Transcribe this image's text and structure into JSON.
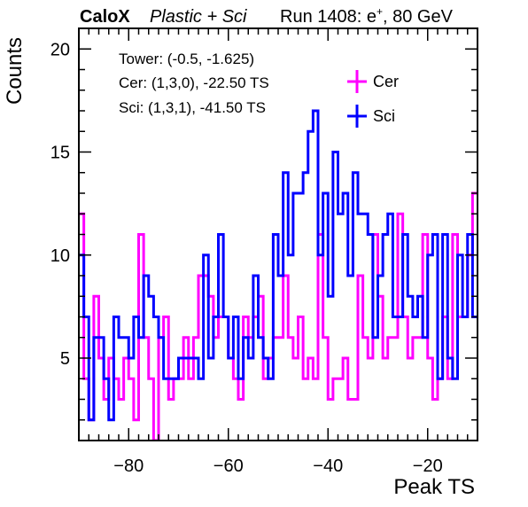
{
  "chart_data": {
    "type": "histogram-step",
    "header": {
      "brand": "CaloX",
      "subtitle": "Plastic + Sci",
      "run_prefix": "Run 1408: e",
      "run_sup": "+",
      "run_suffix": ", 80 GeV"
    },
    "xlabel": "Peak TS",
    "ylabel": "Counts",
    "xlim": [
      -90,
      -10
    ],
    "ylim": [
      1,
      21
    ],
    "xticks": [
      -80,
      -60,
      -40,
      -20
    ],
    "yticks": [
      5,
      10,
      15,
      20
    ],
    "bin_width": 1,
    "info": [
      "Tower: (-0.5, -1.625)",
      "Cer: (1,3,0), -22.50 TS",
      "Sci: (1,3,1), -41.50 TS"
    ],
    "legend_position": "top-right",
    "series": [
      {
        "name": "Cer",
        "color": "#ff00ff",
        "values": [
          12,
          4,
          2,
          8,
          5,
          3,
          5,
          4,
          3,
          5,
          4,
          2,
          11,
          6,
          4,
          1,
          6,
          7,
          3,
          4,
          4,
          6,
          4,
          6,
          9,
          9,
          8,
          6,
          7,
          7,
          5,
          4,
          3,
          7,
          6,
          7,
          8,
          4,
          5,
          6,
          6,
          9,
          6,
          5,
          7,
          4,
          5,
          4,
          11,
          6,
          3,
          4,
          4,
          5,
          3,
          3,
          9,
          6,
          5,
          11,
          8,
          5,
          6,
          6,
          12,
          7,
          5,
          6,
          6,
          11,
          5,
          3,
          4,
          7,
          4,
          11,
          7,
          7,
          10,
          13
        ]
      },
      {
        "name": "Sci",
        "color": "#0000ff",
        "values": [
          10,
          7,
          2,
          6,
          6,
          4,
          2,
          7,
          6,
          6,
          5,
          7,
          6,
          9,
          8,
          7,
          6,
          4,
          4,
          4,
          5,
          5,
          5,
          5,
          4,
          10,
          5,
          7,
          11,
          7,
          5,
          7,
          4,
          6,
          5,
          9,
          6,
          5,
          4,
          11,
          9,
          14,
          10,
          13,
          13,
          14,
          16,
          17,
          10,
          13,
          8,
          15,
          12,
          13,
          9,
          14,
          12,
          12,
          11,
          6,
          9,
          11,
          12,
          7,
          7,
          11,
          8,
          7,
          8,
          6,
          10,
          11,
          4,
          11,
          5,
          4,
          10,
          7,
          11,
          7
        ]
      }
    ]
  }
}
